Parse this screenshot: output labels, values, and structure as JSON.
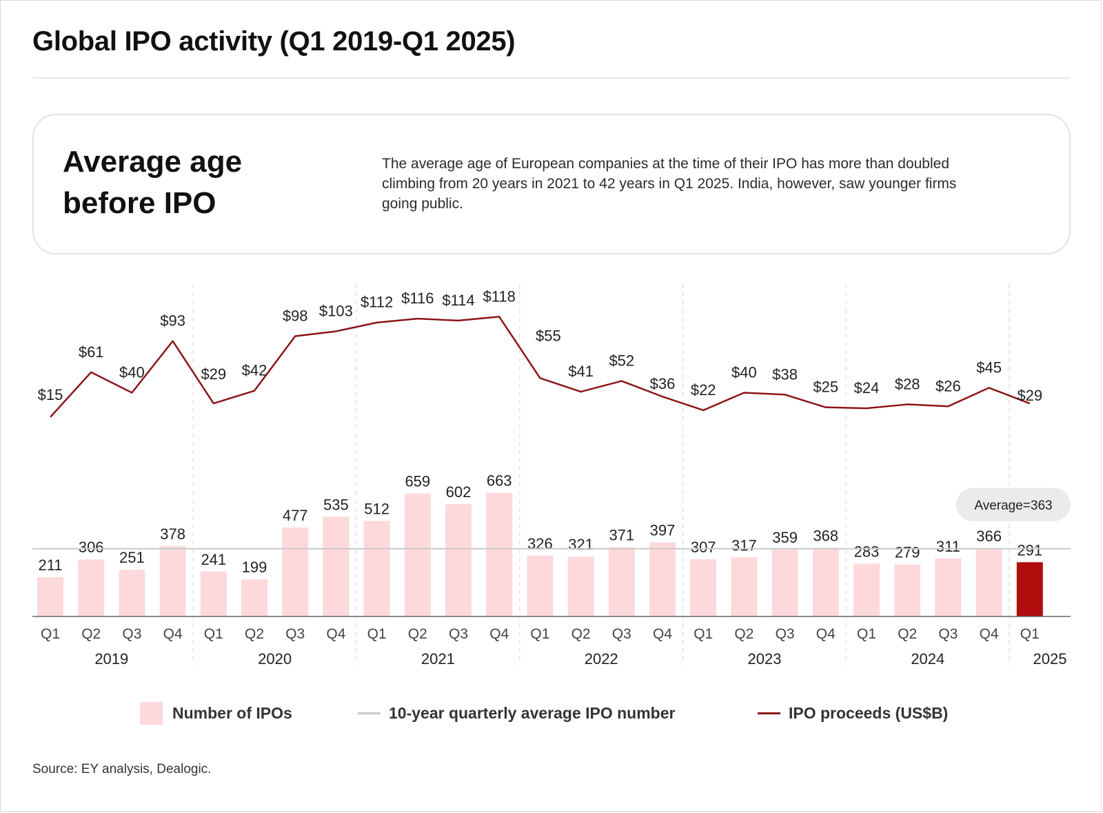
{
  "page": {
    "title": "Global IPO activity (Q1 2019-Q1 2025)",
    "source": "Source: EY analysis, Dealogic."
  },
  "card": {
    "heading": "Average age before IPO",
    "text": "The average age of European companies at the time of their IPO has more than doubled climbing from 20 years in 2021 to 42 years in Q1 2025. India, however, saw younger firms going public."
  },
  "legend": {
    "bars": "Number of IPOs",
    "average": "10-year quarterly average IPO number",
    "proceeds": "IPO proceeds (US$B)"
  },
  "chart_data": {
    "type": "bar",
    "x_quarters": [
      "Q1",
      "Q2",
      "Q3",
      "Q4",
      "Q1",
      "Q2",
      "Q3",
      "Q4",
      "Q1",
      "Q2",
      "Q3",
      "Q4",
      "Q1",
      "Q2",
      "Q3",
      "Q4",
      "Q1",
      "Q2",
      "Q3",
      "Q4",
      "Q1",
      "Q2",
      "Q3",
      "Q4",
      "Q1"
    ],
    "years": [
      "2019",
      "2020",
      "2021",
      "2022",
      "2023",
      "2024",
      "2025"
    ],
    "ipo_counts": [
      211,
      306,
      251,
      378,
      241,
      199,
      477,
      535,
      512,
      659,
      602,
      663,
      326,
      321,
      371,
      397,
      307,
      317,
      359,
      368,
      283,
      279,
      311,
      366,
      291
    ],
    "proceeds_usd_b": [
      15,
      61,
      40,
      93,
      29,
      42,
      98,
      103,
      112,
      116,
      114,
      118,
      55,
      41,
      52,
      36,
      22,
      40,
      38,
      25,
      24,
      28,
      26,
      45,
      29
    ],
    "proceeds_labels": [
      "$15",
      "$61",
      "$40",
      "$93",
      "$29",
      "$42",
      "$98",
      "$103",
      "$112",
      "$116",
      "$114",
      "$118",
      "$55",
      "$41",
      "$52",
      "$36",
      "$22",
      "$40",
      "$38",
      "$25",
      "$24",
      "$28",
      "$26",
      "$45",
      "$29"
    ],
    "average_ipo_number": 363,
    "average_label": "Average=363",
    "highlight_index": 24,
    "colors": {
      "bar": "#fdd9dc",
      "bar_highlight": "#b00c0c",
      "proceeds_line": "#8b1518",
      "average_line": "#c9c9c9"
    },
    "legend_position": "bottom"
  }
}
